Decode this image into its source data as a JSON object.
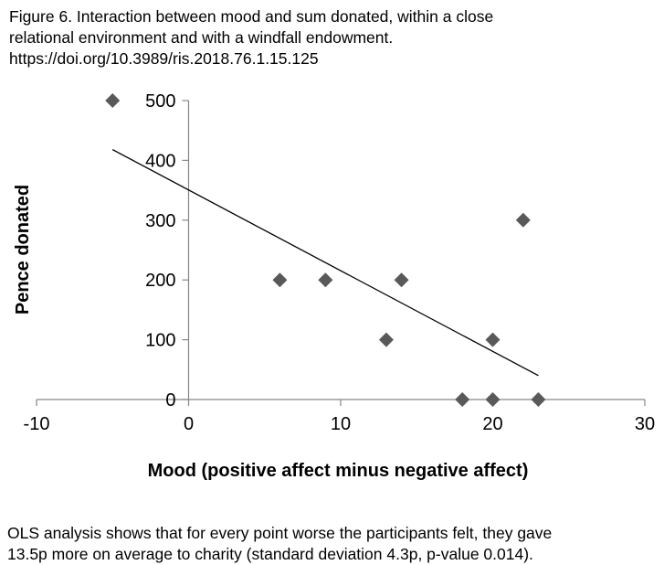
{
  "header": {
    "title_lines": [
      "Figure 6. Interaction between mood and sum donated, within a close",
      "relational environment and with a windfall endowment.",
      "https://doi.org/10.3989/ris.2018.76.1.15.125"
    ]
  },
  "chart_data": {
    "type": "scatter",
    "xlabel": "Mood (positive affect minus  negative affect)",
    "ylabel": "Pence donated",
    "xlim": [
      -10,
      30
    ],
    "ylim": [
      0,
      500
    ],
    "xticks": [
      -10,
      0,
      10,
      20,
      30
    ],
    "yticks": [
      0,
      100,
      200,
      300,
      400,
      500
    ],
    "grid": false,
    "marker": "diamond",
    "marker_color": "#595959",
    "line_color": "#000000",
    "points": [
      {
        "x": -5,
        "y": 500
      },
      {
        "x": 6,
        "y": 200
      },
      {
        "x": 9,
        "y": 200
      },
      {
        "x": 13,
        "y": 100
      },
      {
        "x": 14,
        "y": 200
      },
      {
        "x": 18,
        "y": 0
      },
      {
        "x": 20,
        "y": 100
      },
      {
        "x": 20,
        "y": 0
      },
      {
        "x": 22,
        "y": 300
      },
      {
        "x": 23,
        "y": 0
      }
    ],
    "trendline": {
      "x": [
        -5,
        23
      ],
      "y": [
        418,
        40
      ]
    }
  },
  "caption": {
    "lines": [
      "OLS analysis shows that for every point worse the participants felt, they gave",
      "13.5p more on average to charity (standard deviation 4.3p, p-value 0.014)."
    ]
  }
}
